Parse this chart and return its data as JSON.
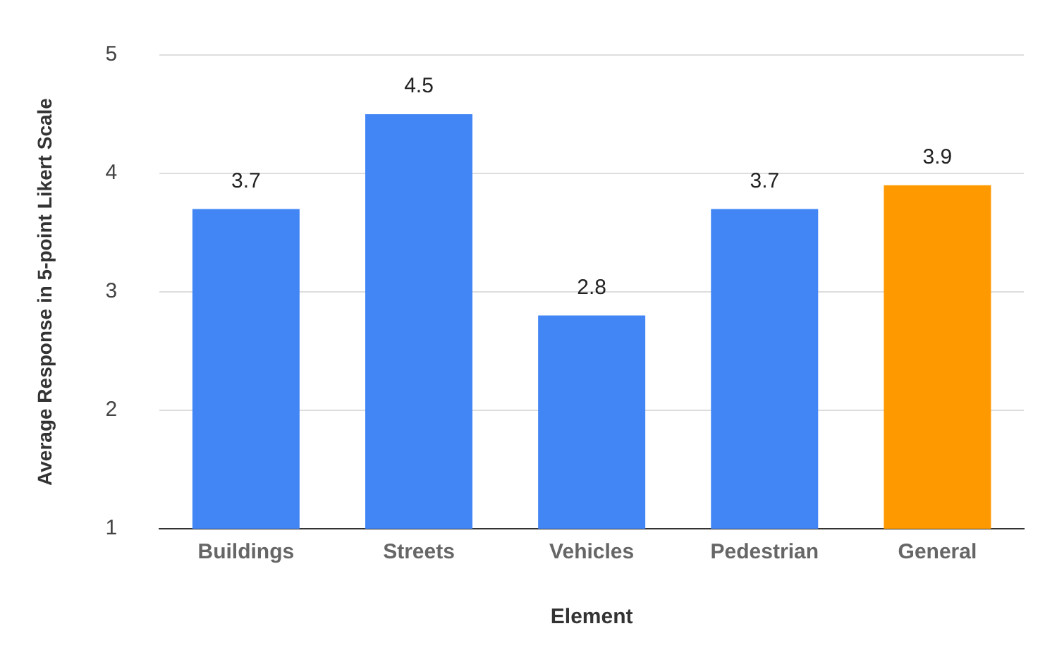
{
  "chart_data": {
    "type": "bar",
    "xlabel": "Element",
    "ylabel": "Average Response in 5-point Likert Scale",
    "categories": [
      "Buildings",
      "Streets",
      "Vehicles",
      "Pedestrian",
      "General"
    ],
    "values": [
      3.7,
      4.5,
      2.8,
      3.7,
      3.9
    ],
    "colors": [
      "#4285f4",
      "#4285f4",
      "#4285f4",
      "#4285f4",
      "#ff9900"
    ],
    "ylim": [
      1,
      5
    ],
    "yticks": [
      1,
      2,
      3,
      4,
      5
    ],
    "grid": "y",
    "data_labels": true,
    "legend": false
  }
}
